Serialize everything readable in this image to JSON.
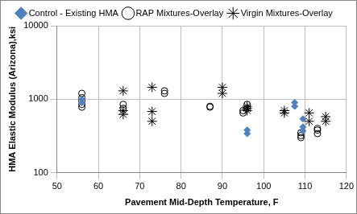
{
  "chart_data": {
    "type": "scatter",
    "x_label": "Pavement Mid-Depth Temperature, F",
    "y_label": "HMA Elastic Modulus (Arizona),ksi",
    "xlim": [
      50,
      120
    ],
    "xticks": [
      50,
      60,
      70,
      80,
      90,
      100,
      110,
      120
    ],
    "ylim": [
      100,
      10000
    ],
    "yticks": [
      100,
      1000,
      10000
    ],
    "log": "y",
    "grid": true,
    "legend": "top",
    "series": [
      {
        "name": "Control - Existing HMA",
        "color": "#4f81bd",
        "marker": "diamond",
        "x": [
          56,
          56,
          96,
          96,
          107.5,
          107.5,
          109.5,
          109.5,
          109.5
        ],
        "values": [
          1000,
          900,
          380,
          340,
          900,
          800,
          540,
          420,
          370
        ]
      },
      {
        "name": "RAP Mixtures-Overlay",
        "color": "#000000",
        "marker": "circle-open",
        "x": [
          56,
          56,
          56,
          56,
          56,
          66,
          66,
          76,
          76,
          87,
          87,
          95,
          95,
          96,
          96,
          109,
          109,
          109,
          113,
          113,
          113
        ],
        "values": [
          1200,
          1050,
          950,
          850,
          780,
          850,
          750,
          1300,
          1200,
          800,
          780,
          700,
          650,
          850,
          750,
          350,
          320,
          300,
          400,
          380,
          340
        ]
      },
      {
        "name": "Virgin Mixtures-Overlay",
        "color": "#000000",
        "marker": "asterisk",
        "x": [
          66,
          66,
          66,
          73,
          73,
          73,
          90,
          90,
          96,
          96,
          96,
          105,
          105,
          111,
          111,
          115,
          115
        ],
        "values": [
          1300,
          700,
          620,
          1450,
          680,
          500,
          1450,
          1200,
          800,
          750,
          700,
          700,
          650,
          650,
          500,
          580,
          500
        ]
      }
    ]
  }
}
